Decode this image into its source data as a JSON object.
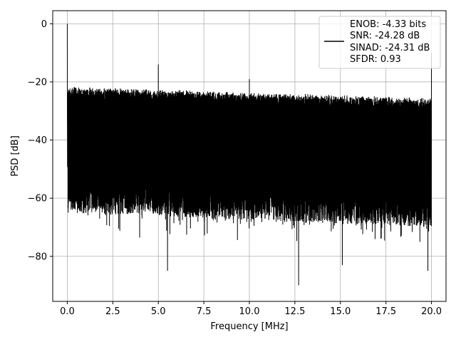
{
  "chart_data": {
    "type": "line",
    "xlabel": "Frequency [MHz]",
    "ylabel": "PSD [dB]",
    "xlim": [
      -0.8,
      20.8
    ],
    "ylim": [
      -95.5,
      4.5
    ],
    "xticks": [
      0.0,
      2.5,
      5.0,
      7.5,
      10.0,
      12.5,
      15.0,
      17.5,
      20.0
    ],
    "xtick_labels": [
      "0.0",
      "2.5",
      "5.0",
      "7.5",
      "10.0",
      "12.5",
      "15.0",
      "17.5",
      "20.0"
    ],
    "yticks": [
      0,
      -20,
      -40,
      -60,
      -80
    ],
    "ytick_labels": [
      "0",
      "−20",
      "−40",
      "−60",
      "−80"
    ],
    "grid": true,
    "legend_placement": "top-right",
    "series_color": "#000000",
    "legend_lines": [
      "ENOB: -4.33 bits",
      "SNR: -24.28 dB",
      "SINAD: -24.31 dB",
      "SFDR: 0.93"
    ],
    "noise_envelope": {
      "upper_start": -21.5,
      "upper_end": -25.5,
      "lower_typical_start": -65,
      "lower_typical_end": -70
    },
    "spikes": [
      {
        "x": 0.0,
        "y": 0.0
      },
      {
        "x": 5.0,
        "y": -14.0
      },
      {
        "x": 10.0,
        "y": -19.0
      },
      {
        "x": 20.0,
        "y": -10.0
      }
    ],
    "deep_dips": [
      {
        "x": 5.5,
        "y": -85.0
      },
      {
        "x": 12.7,
        "y": -90.0
      },
      {
        "x": 15.1,
        "y": -83.0
      },
      {
        "x": 19.8,
        "y": -85.0
      }
    ]
  }
}
